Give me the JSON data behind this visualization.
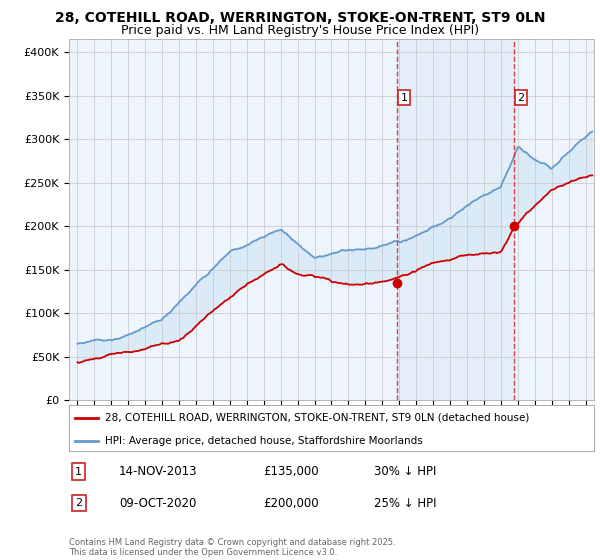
{
  "title": "28, COTEHILL ROAD, WERRINGTON, STOKE-ON-TRENT, ST9 0LN",
  "subtitle": "Price paid vs. HM Land Registry's House Price Index (HPI)",
  "ylabel_ticks": [
    "£0",
    "£50K",
    "£100K",
    "£150K",
    "£200K",
    "£250K",
    "£300K",
    "£350K",
    "£400K"
  ],
  "ytick_values": [
    0,
    50000,
    100000,
    150000,
    200000,
    250000,
    300000,
    350000,
    400000
  ],
  "ylim": [
    0,
    415000
  ],
  "xlim_start": 1994.5,
  "xlim_end": 2025.5,
  "transaction1": {
    "date": "14-NOV-2013",
    "price": 135000,
    "label": "1",
    "year": 2013.87,
    "pct": "30% ↓ HPI"
  },
  "transaction2": {
    "date": "09-OCT-2020",
    "price": 200000,
    "label": "2",
    "year": 2020.77,
    "pct": "25% ↓ HPI"
  },
  "legend_property": "28, COTEHILL ROAD, WERRINGTON, STOKE-ON-TRENT, ST9 0LN (detached house)",
  "legend_hpi": "HPI: Average price, detached house, Staffordshire Moorlands",
  "footnote": "Contains HM Land Registry data © Crown copyright and database right 2025.\nThis data is licensed under the Open Government Licence v3.0.",
  "property_color": "#cc0000",
  "hpi_color": "#6699cc",
  "shade_color": "#daeaf7",
  "vline_color": "#dd2222",
  "background_color": "#eef4fb",
  "title_fontsize": 10,
  "subtitle_fontsize": 9,
  "tick_fontsize": 8
}
